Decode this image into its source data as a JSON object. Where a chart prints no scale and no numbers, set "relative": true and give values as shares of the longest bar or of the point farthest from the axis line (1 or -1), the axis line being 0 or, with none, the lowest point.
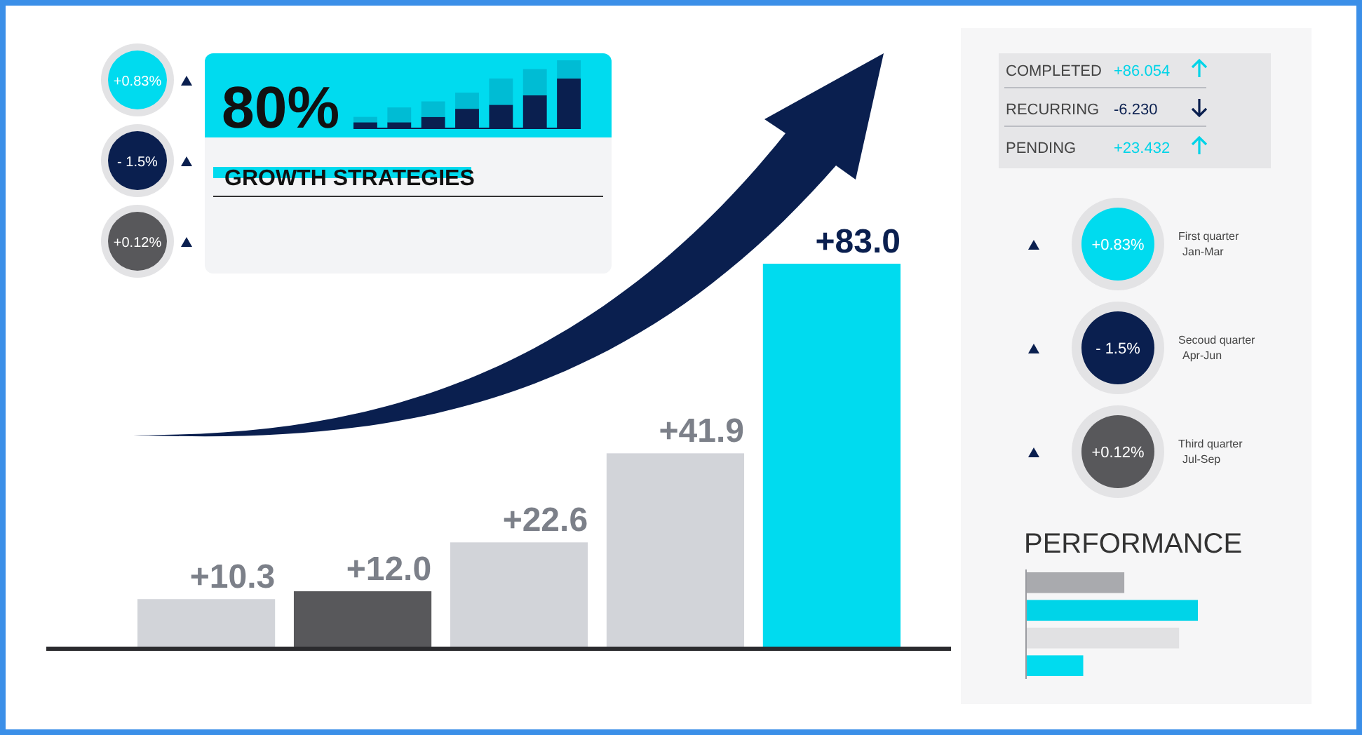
{
  "chart_data": [
    {
      "type": "bar",
      "categories": [
        null,
        null,
        null,
        null,
        null
      ],
      "values": [
        10.3,
        12.0,
        22.6,
        41.9,
        83.0
      ],
      "colors": [
        "#d2d4d9",
        "#58585b",
        "#d2d4d9",
        "#d2d4d9",
        "#00dbef"
      ],
      "value_labels": [
        "+10.3",
        "+12.0",
        "+22.6",
        "+41.9",
        "+83.0"
      ]
    },
    {
      "type": "bar",
      "title": "80%",
      "subtitle": "GROWTH STRATEGIES",
      "stacked": true,
      "relative": true,
      "categories": [
        null,
        null,
        null,
        null,
        null,
        null,
        null
      ],
      "series": [
        {
          "color": "#0a1f4f",
          "values": [
            0.08,
            0.08,
            0.16,
            0.28,
            0.34,
            0.48,
            0.73
          ]
        },
        {
          "color": "#00bcd4",
          "values": [
            0.08,
            0.22,
            0.23,
            0.24,
            0.39,
            0.39,
            0.27
          ]
        }
      ]
    },
    {
      "type": "other",
      "categories": [
        "+0.83%",
        "- 1.5%",
        "+0.12%"
      ],
      "colors": [
        "#00dbef",
        "#0a1f4f",
        "#58585b"
      ]
    },
    {
      "type": "other",
      "categories": [
        "COMPLETED",
        "RECURRING",
        "PENDING"
      ],
      "value_labels": [
        "+86.054",
        "-6.230",
        "+23.432"
      ]
    },
    {
      "type": "other",
      "categories": [
        "+0.83%",
        "- 1.5%",
        "+0.12%"
      ],
      "colors": [
        "#00dbef",
        "#0a1f4f",
        "#58585b"
      ],
      "annotations": [
        "First quarter",
        "Jan-Mar",
        "Secoud quarter",
        "Apr-Jun",
        "Third quarter",
        "Jul-Sep"
      ]
    },
    {
      "type": "bar",
      "title": "PERFORMANCE",
      "orientation": "horizontal",
      "relative": true,
      "categories": [
        null,
        null,
        null,
        null
      ],
      "values": [
        0.57,
        1,
        0.89,
        0.33
      ],
      "colors": [
        "#a9aaae",
        "#00d4e8",
        "#e1e1e3",
        "#00dbef"
      ]
    }
  ]
}
